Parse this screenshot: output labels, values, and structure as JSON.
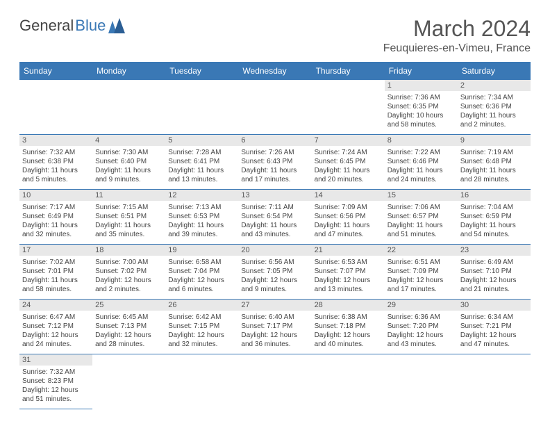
{
  "brand": {
    "general": "General",
    "blue": "Blue"
  },
  "title": "March 2024",
  "location": "Feuquieres-en-Vimeu, France",
  "colors": {
    "accent": "#3a78b5",
    "header_text": "#ffffff",
    "daynum_bg": "#e8e8e8",
    "text": "#444444",
    "row_border": "#3a78b5"
  },
  "weekdays": [
    "Sunday",
    "Monday",
    "Tuesday",
    "Wednesday",
    "Thursday",
    "Friday",
    "Saturday"
  ],
  "weeks": [
    [
      null,
      null,
      null,
      null,
      null,
      {
        "n": "1",
        "sr": "7:36 AM",
        "ss": "6:35 PM",
        "dl": "10 hours and 58 minutes."
      },
      {
        "n": "2",
        "sr": "7:34 AM",
        "ss": "6:36 PM",
        "dl": "11 hours and 2 minutes."
      }
    ],
    [
      {
        "n": "3",
        "sr": "7:32 AM",
        "ss": "6:38 PM",
        "dl": "11 hours and 5 minutes."
      },
      {
        "n": "4",
        "sr": "7:30 AM",
        "ss": "6:40 PM",
        "dl": "11 hours and 9 minutes."
      },
      {
        "n": "5",
        "sr": "7:28 AM",
        "ss": "6:41 PM",
        "dl": "11 hours and 13 minutes."
      },
      {
        "n": "6",
        "sr": "7:26 AM",
        "ss": "6:43 PM",
        "dl": "11 hours and 17 minutes."
      },
      {
        "n": "7",
        "sr": "7:24 AM",
        "ss": "6:45 PM",
        "dl": "11 hours and 20 minutes."
      },
      {
        "n": "8",
        "sr": "7:22 AM",
        "ss": "6:46 PM",
        "dl": "11 hours and 24 minutes."
      },
      {
        "n": "9",
        "sr": "7:19 AM",
        "ss": "6:48 PM",
        "dl": "11 hours and 28 minutes."
      }
    ],
    [
      {
        "n": "10",
        "sr": "7:17 AM",
        "ss": "6:49 PM",
        "dl": "11 hours and 32 minutes."
      },
      {
        "n": "11",
        "sr": "7:15 AM",
        "ss": "6:51 PM",
        "dl": "11 hours and 35 minutes."
      },
      {
        "n": "12",
        "sr": "7:13 AM",
        "ss": "6:53 PM",
        "dl": "11 hours and 39 minutes."
      },
      {
        "n": "13",
        "sr": "7:11 AM",
        "ss": "6:54 PM",
        "dl": "11 hours and 43 minutes."
      },
      {
        "n": "14",
        "sr": "7:09 AM",
        "ss": "6:56 PM",
        "dl": "11 hours and 47 minutes."
      },
      {
        "n": "15",
        "sr": "7:06 AM",
        "ss": "6:57 PM",
        "dl": "11 hours and 51 minutes."
      },
      {
        "n": "16",
        "sr": "7:04 AM",
        "ss": "6:59 PM",
        "dl": "11 hours and 54 minutes."
      }
    ],
    [
      {
        "n": "17",
        "sr": "7:02 AM",
        "ss": "7:01 PM",
        "dl": "11 hours and 58 minutes."
      },
      {
        "n": "18",
        "sr": "7:00 AM",
        "ss": "7:02 PM",
        "dl": "12 hours and 2 minutes."
      },
      {
        "n": "19",
        "sr": "6:58 AM",
        "ss": "7:04 PM",
        "dl": "12 hours and 6 minutes."
      },
      {
        "n": "20",
        "sr": "6:56 AM",
        "ss": "7:05 PM",
        "dl": "12 hours and 9 minutes."
      },
      {
        "n": "21",
        "sr": "6:53 AM",
        "ss": "7:07 PM",
        "dl": "12 hours and 13 minutes."
      },
      {
        "n": "22",
        "sr": "6:51 AM",
        "ss": "7:09 PM",
        "dl": "12 hours and 17 minutes."
      },
      {
        "n": "23",
        "sr": "6:49 AM",
        "ss": "7:10 PM",
        "dl": "12 hours and 21 minutes."
      }
    ],
    [
      {
        "n": "24",
        "sr": "6:47 AM",
        "ss": "7:12 PM",
        "dl": "12 hours and 24 minutes."
      },
      {
        "n": "25",
        "sr": "6:45 AM",
        "ss": "7:13 PM",
        "dl": "12 hours and 28 minutes."
      },
      {
        "n": "26",
        "sr": "6:42 AM",
        "ss": "7:15 PM",
        "dl": "12 hours and 32 minutes."
      },
      {
        "n": "27",
        "sr": "6:40 AM",
        "ss": "7:17 PM",
        "dl": "12 hours and 36 minutes."
      },
      {
        "n": "28",
        "sr": "6:38 AM",
        "ss": "7:18 PM",
        "dl": "12 hours and 40 minutes."
      },
      {
        "n": "29",
        "sr": "6:36 AM",
        "ss": "7:20 PM",
        "dl": "12 hours and 43 minutes."
      },
      {
        "n": "30",
        "sr": "6:34 AM",
        "ss": "7:21 PM",
        "dl": "12 hours and 47 minutes."
      }
    ],
    [
      {
        "n": "31",
        "sr": "7:32 AM",
        "ss": "8:23 PM",
        "dl": "12 hours and 51 minutes."
      },
      null,
      null,
      null,
      null,
      null,
      null
    ]
  ],
  "labels": {
    "sunrise": "Sunrise:",
    "sunset": "Sunset:",
    "daylight": "Daylight:"
  }
}
